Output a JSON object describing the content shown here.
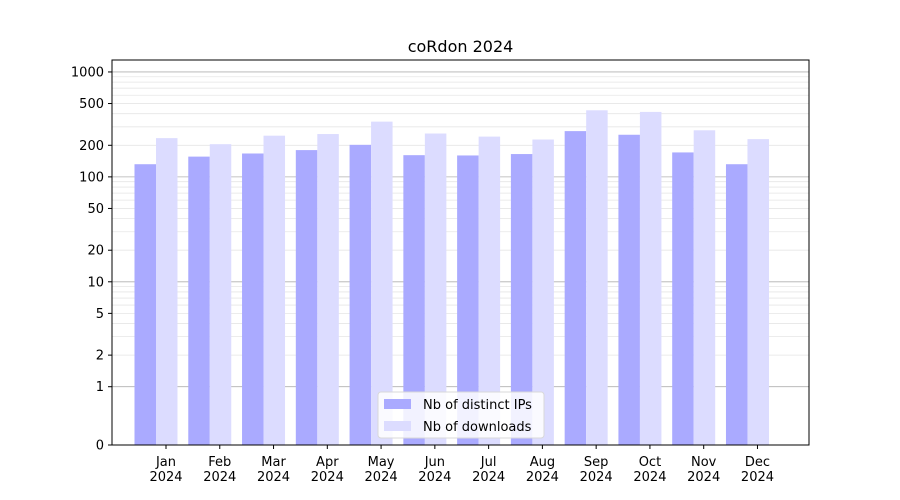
{
  "chart_data": {
    "type": "bar",
    "title": "coRdon 2024",
    "xlabel": "",
    "ylabel": "",
    "y_scale": "symlog",
    "ylim": [
      0,
      1300
    ],
    "y_ticks": [
      0,
      1,
      2,
      5,
      10,
      20,
      50,
      100,
      200,
      500,
      1000
    ],
    "y_tick_labels": [
      "0",
      "1",
      "2",
      "5",
      "10",
      "20",
      "50",
      "100",
      "200",
      "500",
      "1000"
    ],
    "categories": [
      "Jan 2024",
      "Feb 2024",
      "Mar 2024",
      "Apr 2024",
      "May 2024",
      "Jun 2024",
      "Jul 2024",
      "Aug 2024",
      "Sep 2024",
      "Oct 2024",
      "Nov 2024",
      "Dec 2024"
    ],
    "category_lines": [
      [
        "Jan",
        "2024"
      ],
      [
        "Feb",
        "2024"
      ],
      [
        "Mar",
        "2024"
      ],
      [
        "Apr",
        "2024"
      ],
      [
        "May",
        "2024"
      ],
      [
        "Jun",
        "2024"
      ],
      [
        "Jul",
        "2024"
      ],
      [
        "Aug",
        "2024"
      ],
      [
        "Sep",
        "2024"
      ],
      [
        "Oct",
        "2024"
      ],
      [
        "Nov",
        "2024"
      ],
      [
        "Dec",
        "2024"
      ]
    ],
    "series": [
      {
        "name": "Nb of distinct IPs",
        "color": "#aaaaff",
        "values": [
          132,
          156,
          167,
          180,
          202,
          161,
          160,
          165,
          273,
          252,
          171,
          132
        ]
      },
      {
        "name": "Nb of downloads",
        "color": "#dcdcff",
        "values": [
          234,
          205,
          247,
          256,
          336,
          259,
          242,
          227,
          431,
          416,
          278,
          229
        ]
      }
    ],
    "grid": true,
    "legend_position": "bottom-center"
  }
}
